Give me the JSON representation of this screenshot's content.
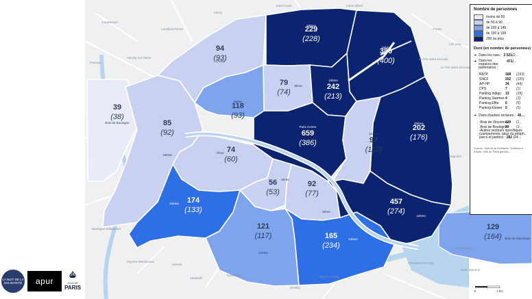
{
  "legend": {
    "title": "Nombre de personnes",
    "classes": [
      {
        "label": "moins de 50",
        "color": "#e8ecf8"
      },
      {
        "label": "de 50 à 90",
        "color": "#c8d2f0"
      },
      {
        "label": "de 100 à 149",
        "color": "#7ea4ee"
      },
      {
        "label": "de 150 à 199",
        "color": "#2f6fe6"
      },
      {
        "label": "200 ou plus",
        "color": "#0b2470"
      }
    ],
    "dont_title": "Dont (en nombre de personnes)",
    "rues_label": "Dans les rues :",
    "rues_value": "2 521",
    "rues_prev": "(2…",
    "espaces_label": "Dans les espaces des partenaires :",
    "espaces_value": "471",
    "espaces_prev": "(…",
    "partners": [
      {
        "name": "RATP",
        "value": "168",
        "prev": "(193)"
      },
      {
        "name": "SNCF",
        "value": "202",
        "prev": "(120)"
      },
      {
        "name": "AP-HP",
        "value": "34",
        "prev": "(44)"
      },
      {
        "name": "CPS",
        "value": "7",
        "prev": "(1)"
      },
      {
        "name": "Parking Indigo",
        "value": "13",
        "prev": "(18)"
      },
      {
        "name": "Parking Saemes",
        "value": "4",
        "prev": "(1)"
      },
      {
        "name": "Parking Effia",
        "value": "6",
        "prev": "(5)"
      },
      {
        "name": "Parking Klower",
        "value": "0",
        "prev": "(5)"
      }
    ],
    "autres_label": "Dans d'autres secteurs :",
    "autres_value": "45…",
    "autres": [
      {
        "name": "-Bois de Vincennes",
        "value": "129",
        "prev": "(1…"
      },
      {
        "name": "-Bois de Boulogne",
        "value": "39",
        "prev": "(3…"
      }
    ],
    "autres_note": "-Autres secteurs spécifiques (campements, talus du périph., parcs et jardins) :",
    "autres_note_value": "282",
    "autres_note_prev": "(24…",
    "source": "Source : Nuit de la Solidarité, Traitement d'Apur, Ville de Paris (janvier…"
  },
  "districts": [
    {
      "id": "16",
      "name": "16ème",
      "value": "85",
      "prev": "(92)",
      "color": "#c8d2f0"
    },
    {
      "id": "17",
      "name": "17ème",
      "value": "94",
      "prev": "(93)",
      "color": "#c8d2f0"
    },
    {
      "id": "18",
      "name": "18ème",
      "value": "229",
      "prev": "(228)",
      "color": "#0b2470"
    },
    {
      "id": "19",
      "name": "19ème",
      "value": "380",
      "prev": "(400)",
      "color": "#0b2470"
    },
    {
      "id": "9",
      "name": "9ème",
      "value": "79",
      "prev": "(74)",
      "color": "#c8d2f0"
    },
    {
      "id": "10",
      "name": "10ème",
      "value": "242",
      "prev": "(213)",
      "color": "#0b2470"
    },
    {
      "id": "8",
      "name": "8ème",
      "value": "118",
      "prev": "(93)",
      "color": "#7ea4ee"
    },
    {
      "id": "20",
      "name": "20ème",
      "value": "202",
      "prev": "(176)",
      "color": "#0b2470"
    },
    {
      "id": "centre",
      "name": "Paris Centre",
      "value": "659",
      "prev": "(386)",
      "color": "#0b2470"
    },
    {
      "id": "11",
      "name": "11ème",
      "value": "97",
      "prev": "(110)",
      "color": "#c8d2f0"
    },
    {
      "id": "7",
      "name": "7ème",
      "value": "74",
      "prev": "(60)",
      "color": "#c8d2f0"
    },
    {
      "id": "6",
      "name": "6ème",
      "value": "56",
      "prev": "(53)",
      "color": "#c8d2f0"
    },
    {
      "id": "5",
      "name": "5ème",
      "value": "92",
      "prev": "(77)",
      "color": "#c8d2f0"
    },
    {
      "id": "15",
      "name": "15ème",
      "value": "174",
      "prev": "(133)",
      "color": "#2f6fe6"
    },
    {
      "id": "14",
      "name": "14ème",
      "value": "121",
      "prev": "(117)",
      "color": "#7ea4ee"
    },
    {
      "id": "13",
      "name": "13ème",
      "value": "165",
      "prev": "(234)",
      "color": "#2f6fe6"
    },
    {
      "id": "12",
      "name": "12ème",
      "value": "457",
      "prev": "(274)",
      "color": "#0b2470"
    },
    {
      "id": "boulogne",
      "name": "Bois de Boulogne",
      "value": "39",
      "prev": "(38)",
      "color": "#e8ecf8"
    },
    {
      "id": "vincennes",
      "name": "Bois de Vincennes",
      "value": "129",
      "prev": "(164)",
      "color": "#7ea4ee"
    }
  ],
  "places": [
    "Courbevoie",
    "Levallois-Perret",
    "Clichy",
    "Saint-Ouen",
    "Aubervilliers",
    "Pantin",
    "Neuilly-sur-Seine",
    "Puteaux",
    "Le Pré Saint-Gervais",
    "Les Lilas",
    "Le Pré Saint-Gervais",
    "Boulogne-Billancourt",
    "Issy-les-Moulineaux",
    "Vanves",
    "Malakoff",
    "Montrouge",
    "Gentilly",
    "Ivry-sur-Seine",
    "Charenton-le-Pont",
    "Saint-Mandé",
    "Bagnolet",
    "Saint-Maurice"
  ],
  "logos": {
    "a": "LA NUIT DE LA SOLIDARITÉ",
    "b": "apur",
    "c_top": "VILLE DE",
    "c_main": "PARIS"
  },
  "scale": {
    "zero": "0",
    "one": "1 km"
  },
  "colors": {
    "water": "#b8d4ee",
    "ground": "#eef0f2",
    "road": "#ffffff",
    "border": "#ffffff"
  }
}
